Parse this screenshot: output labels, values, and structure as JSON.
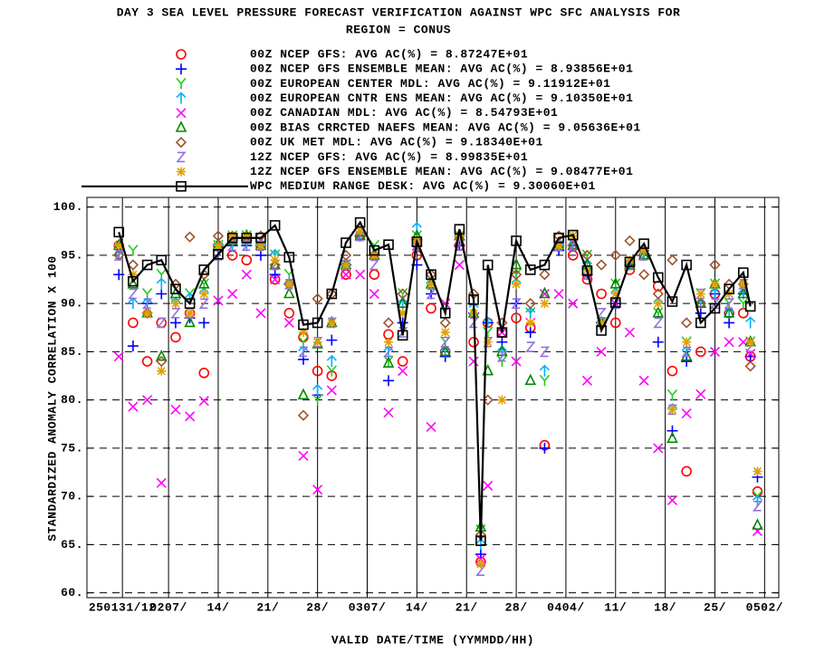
{
  "chart_data": {
    "type": "scatter",
    "title": "DAY 3 SEA LEVEL PRESSURE FORECAST VERIFICATION AGAINST WPC SFC ANALYSIS FOR",
    "subtitle": "REGION = CONUS",
    "y_label": "STANDARDIZED ANOMALY CORRELATION X 100",
    "x_label": "VALID DATE/TIME (YYMMDD/HH)",
    "xlim": [
      -4.5,
      93
    ],
    "ylim": [
      59.5,
      101
    ],
    "xticks": [
      {
        "value": 0.5,
        "label": "250131/12"
      },
      {
        "value": 7,
        "label": "0207/"
      },
      {
        "value": 14,
        "label": "14/"
      },
      {
        "value": 21,
        "label": "21/"
      },
      {
        "value": 28,
        "label": "28/"
      },
      {
        "value": 35,
        "label": "0307/"
      },
      {
        "value": 42,
        "label": "14/"
      },
      {
        "value": 49,
        "label": "21/"
      },
      {
        "value": 56,
        "label": "28/"
      },
      {
        "value": 63,
        "label": "0404/"
      },
      {
        "value": 70,
        "label": "11/"
      },
      {
        "value": 77,
        "label": "18/"
      },
      {
        "value": 84,
        "label": "25/"
      },
      {
        "value": 91,
        "label": "0502/"
      }
    ],
    "yticks": [
      {
        "value": 60,
        "label": "60."
      },
      {
        "value": 65,
        "label": "65."
      },
      {
        "value": 70,
        "label": "70."
      },
      {
        "value": 75,
        "label": "75."
      },
      {
        "value": 80,
        "label": "80."
      },
      {
        "value": 85,
        "label": "85."
      },
      {
        "value": 90,
        "label": "90."
      },
      {
        "value": 95,
        "label": "95."
      },
      {
        "value": 100,
        "label": "100."
      }
    ],
    "grid": true,
    "x": [
      0,
      2,
      4,
      6,
      8,
      10,
      12,
      14,
      16,
      18,
      20,
      22,
      24,
      26,
      28,
      30,
      32,
      34,
      36,
      38,
      40,
      42,
      44,
      46,
      48,
      50,
      51,
      52,
      54,
      56,
      58,
      60,
      62,
      64,
      66,
      68,
      70,
      72,
      74,
      76,
      78,
      80,
      82,
      84,
      86,
      88,
      89,
      90
    ],
    "series": [
      {
        "name": "00Z NCEP GFS: AVG AC(%) =  8.87247E+01",
        "color": "#ff0000",
        "marker": "circle",
        "values": [
          96,
          88,
          84,
          88,
          86.5,
          89,
          82.8,
          96,
          95,
          94.5,
          96,
          92.5,
          89,
          86.5,
          83,
          82.5,
          93,
          97,
          93,
          86.8,
          84,
          95,
          89.5,
          85,
          96,
          86,
          63.2,
          88,
          87,
          88.5,
          87.5,
          75.3,
          96,
          95,
          92.5,
          91,
          88,
          93.5,
          95,
          91.8,
          83,
          72.6,
          85,
          91,
          89,
          89,
          84.5,
          70.5
        ]
      },
      {
        "name": "00Z NCEP GFS ENSEMBLE MEAN: AVG AC(%) =  8.93856E+01",
        "color": "#0000ff",
        "marker": "plus",
        "values": [
          93,
          85.6,
          90,
          91,
          88,
          88.5,
          88,
          95.5,
          96,
          96,
          95,
          93,
          92,
          84.2,
          80.5,
          86.2,
          94,
          97,
          95,
          82,
          88,
          94,
          91,
          84.5,
          96,
          89,
          64,
          88,
          86,
          90,
          87,
          75,
          95.5,
          96,
          93,
          88,
          90,
          94,
          95.5,
          86,
          76.8,
          84,
          89,
          91,
          88,
          91,
          84.5,
          72
        ]
      },
      {
        "name": "00Z EUROPEAN CENTER MDL: AVG AC(%) =  9.11912E+01",
        "color": "#22cc22",
        "marker": "y",
        "values": [
          95.5,
          95.5,
          91,
          93,
          90,
          91,
          92,
          96,
          97,
          97,
          96,
          95,
          93,
          86,
          80,
          83,
          94,
          97.5,
          96,
          84,
          91,
          97,
          92,
          86,
          97,
          90.5,
          66.5,
          87,
          84,
          93,
          89,
          82,
          96,
          97,
          95,
          88,
          92,
          94,
          95,
          89,
          80.5,
          86,
          91,
          92,
          90,
          90,
          86,
          70
        ]
      },
      {
        "name": "00Z EUROPEAN CNTR ENS MEAN: AVG AC(%) =  9.10350E+01",
        "color": "#00b0ff",
        "marker": "arrow",
        "values": [
          95,
          90,
          90,
          92,
          90,
          90.5,
          91,
          96,
          96,
          96,
          96,
          95,
          92,
          85,
          81,
          84,
          94,
          97,
          95,
          85,
          90,
          97.8,
          92,
          85,
          97,
          89.5,
          65,
          88,
          85,
          92,
          89,
          83,
          96,
          96,
          94,
          88,
          91,
          94,
          95,
          90,
          79,
          85,
          90,
          91,
          89,
          91,
          88,
          69.5
        ]
      },
      {
        "name": "00Z CANADIAN MDL: AVG AC(%) =  8.54793E+01",
        "color": "#ff00ff",
        "marker": "cross",
        "values": [
          84.5,
          79.3,
          80,
          71.4,
          79,
          78.3,
          79.9,
          90.3,
          91,
          93,
          89,
          92.5,
          88,
          74.2,
          70.7,
          81,
          93,
          93,
          91,
          78.7,
          83,
          96,
          77.2,
          90,
          94,
          84,
          63.5,
          71.1,
          87,
          84,
          88,
          91,
          91,
          90,
          82,
          85,
          90,
          87,
          82,
          75,
          69.6,
          78.6,
          80.6,
          85,
          86,
          86,
          84.8,
          66.4
        ]
      },
      {
        "name": "00Z BIAS CRRCTED NAEFS MEAN: AVG AC(%) =  9.05636E+01",
        "color": "#008800",
        "marker": "triangle",
        "values": [
          96,
          92,
          89,
          84.5,
          91,
          88,
          92,
          96,
          96.5,
          97,
          96,
          94,
          91,
          80.5,
          85.8,
          88,
          94,
          97,
          95,
          83.8,
          90,
          97,
          92,
          85,
          97,
          89,
          66.8,
          83,
          85,
          94,
          82,
          91,
          96,
          96,
          94,
          88,
          92,
          94,
          95,
          89,
          76,
          84.5,
          90,
          92,
          89,
          91,
          86,
          67
        ]
      },
      {
        "name": "00Z UK MET MDL: AVG AC(%) =  9.18340E+01",
        "color": "#a0522d",
        "marker": "diamond",
        "values": [
          95,
          94,
          89,
          84,
          92,
          96.9,
          93,
          97,
          97,
          96.5,
          97,
          94,
          92,
          78.4,
          90.5,
          91,
          95,
          97,
          95,
          88,
          91,
          96,
          93,
          88,
          97,
          91,
          66,
          80,
          88,
          93,
          90,
          93,
          97,
          96,
          95,
          94,
          95,
          96.5,
          93,
          91,
          94.5,
          88,
          90,
          94,
          92,
          92,
          83.5,
          null
        ]
      },
      {
        "name": "12Z NCEP GFS: AVG AC(%) =  8.99835E+01",
        "color": "#9370db",
        "marker": "z",
        "values": [
          95,
          91,
          90,
          88,
          89,
          89,
          90,
          95,
          96,
          96,
          96,
          94,
          92,
          85,
          86,
          88,
          94,
          97,
          94,
          85,
          87,
          96,
          91,
          86,
          96,
          88,
          62.3,
          86,
          84.5,
          90,
          85.5,
          85,
          96,
          96,
          93,
          89,
          90,
          94,
          95,
          88,
          79,
          85,
          91,
          90,
          90,
          92,
          85.5,
          69
        ]
      },
      {
        "name": "12Z NCEP GFS ENSEMBLE MEAN: AVG AC(%) =  9.08477E+01",
        "color": "#e0a000",
        "marker": "star",
        "values": [
          96,
          93,
          89,
          83,
          90,
          89,
          91,
          96,
          97,
          97,
          96,
          94.5,
          92,
          87,
          86,
          88,
          94,
          97.5,
          95,
          86,
          89,
          96.5,
          92,
          87,
          97,
          89,
          63,
          86,
          80,
          92,
          88,
          90,
          96,
          97,
          93.5,
          88,
          91,
          94.5,
          95.5,
          90,
          79,
          86,
          91,
          92,
          91,
          92,
          86,
          72.6
        ]
      },
      {
        "name": "WPC MEDIUM RANGE DESK: AVG AC(%) =  9.30060E+01",
        "color": "#000000",
        "marker": "square",
        "line": true,
        "values": [
          97.4,
          92.3,
          94,
          94.5,
          91.5,
          90,
          93.5,
          95.1,
          96.8,
          96.8,
          96.8,
          98.1,
          94.8,
          87.8,
          88,
          91,
          96.3,
          98.4,
          95.5,
          96.1,
          86.7,
          96.4,
          93,
          89,
          97.7,
          90.4,
          65.4,
          94,
          87,
          96.5,
          93.5,
          94,
          96.8,
          97.1,
          93.4,
          87.2,
          90.1,
          94.3,
          96.2,
          92.7,
          90.2,
          94,
          88,
          89.5,
          91.5,
          93.2,
          89.7,
          null
        ]
      }
    ]
  }
}
